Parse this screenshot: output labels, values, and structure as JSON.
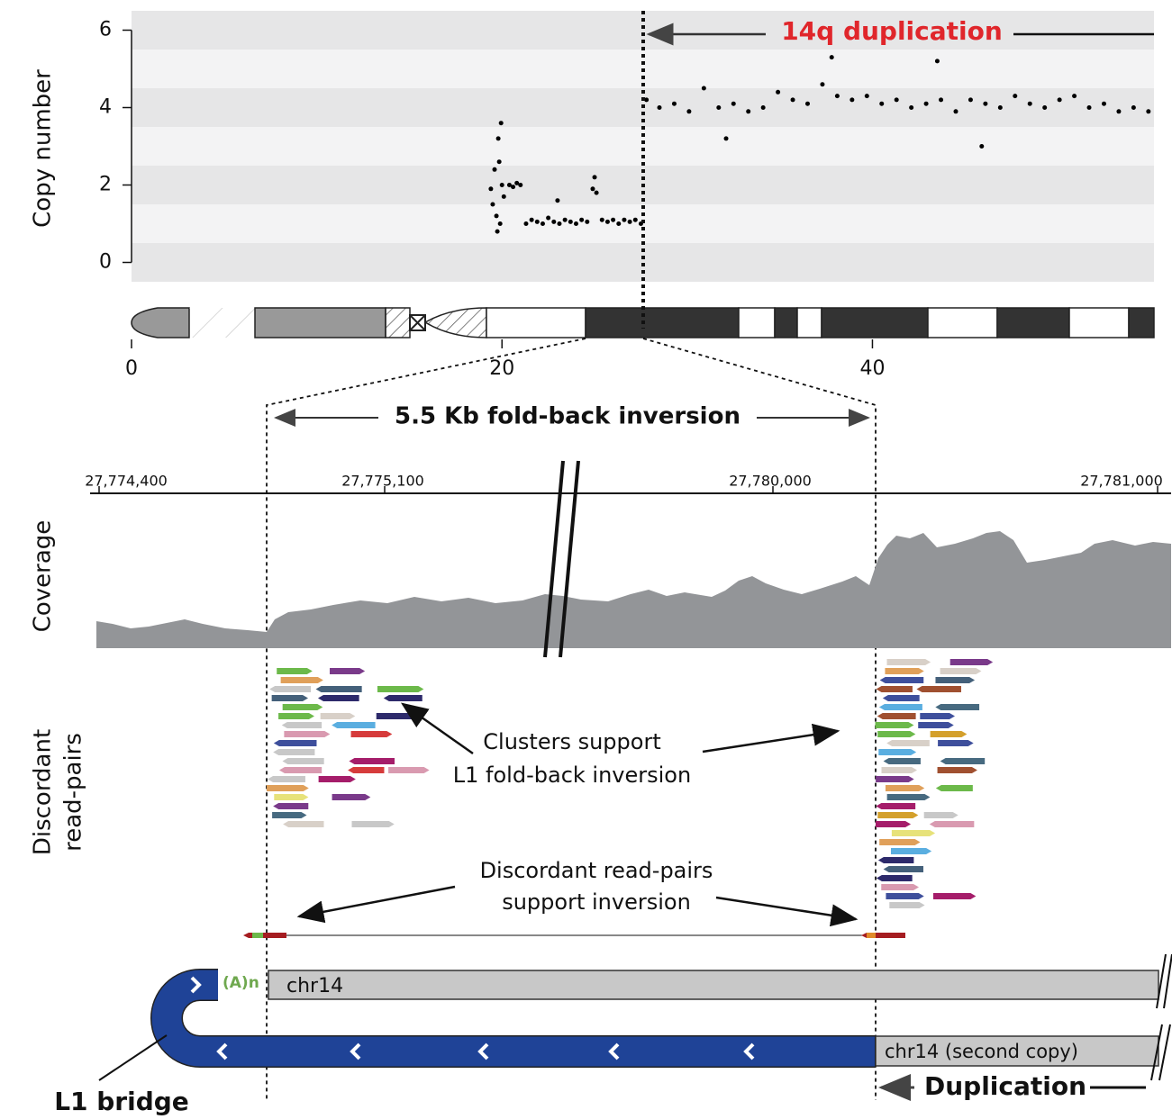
{
  "chart_data": {
    "type": "scatter",
    "ylabel": "Copy number",
    "annotation": "14q duplication",
    "x": [
      19.4,
      19.5,
      19.6,
      19.7,
      19.8,
      19.85,
      19.9,
      20.0,
      19.75,
      20.1,
      19.95,
      20.4,
      20.6,
      20.8,
      21.0,
      21.3,
      21.6,
      21.9,
      22.2,
      22.5,
      22.8,
      23.1,
      23.4,
      23.7,
      24.0,
      24.3,
      24.6,
      23.0,
      24.9,
      25.0,
      25.1,
      25.4,
      25.7,
      26.0,
      26.3,
      26.6,
      26.9,
      27.2,
      27.5,
      27.8,
      28.5,
      29.3,
      30.1,
      30.9,
      31.7,
      32.1,
      32.5,
      33.3,
      34.1,
      34.9,
      35.7,
      36.5,
      37.3,
      37.8,
      38.1,
      38.9,
      39.7,
      40.5,
      41.3,
      42.1,
      42.9,
      43.5,
      43.7,
      44.5,
      45.3,
      45.9,
      46.1,
      46.9,
      47.7,
      48.5,
      49.3,
      50.1,
      50.9,
      51.7,
      52.5,
      53.3,
      54.1,
      54.9
    ],
    "values": [
      1.9,
      1.5,
      2.4,
      1.2,
      3.2,
      2.6,
      1.0,
      2.0,
      0.8,
      1.7,
      3.6,
      2.0,
      1.95,
      2.05,
      2.0,
      1.0,
      1.1,
      1.05,
      1.0,
      1.15,
      1.05,
      1.0,
      1.1,
      1.05,
      1.0,
      1.1,
      1.05,
      1.6,
      1.9,
      2.2,
      1.8,
      1.1,
      1.05,
      1.1,
      1.0,
      1.1,
      1.05,
      1.1,
      1.0,
      4.2,
      4.0,
      4.1,
      3.9,
      4.5,
      4.0,
      3.2,
      4.1,
      3.9,
      4.0,
      4.4,
      4.2,
      4.1,
      4.6,
      5.3,
      4.3,
      4.2,
      4.3,
      4.1,
      4.2,
      4.0,
      4.1,
      5.2,
      4.2,
      3.9,
      4.2,
      3.0,
      4.1,
      4.0,
      4.3,
      4.1,
      4.0,
      4.2,
      4.3,
      4.0,
      4.1,
      3.9,
      4.0,
      3.9
    ],
    "color": "#000000",
    "xlim": [
      0,
      55.2
    ],
    "xticks": [
      0,
      20,
      40
    ],
    "ylim": [
      -0.5,
      6.5
    ],
    "yticks": [
      0,
      2,
      4,
      6
    ],
    "grid": true
  },
  "figure": {
    "inversion_label": "5.5 Kb fold-back inversion",
    "coordinate_labels": [
      "27,774,400",
      "27,775,100",
      "27,780,000",
      "27,781,000"
    ],
    "coverage_label": "Coverage",
    "discordant_label": [
      "Discordant",
      "read-pairs"
    ],
    "clusters_note": [
      "Clusters support",
      "L1 fold-back inversion"
    ],
    "pairs_note": [
      "Discordant read-pairs",
      "support inversion"
    ],
    "polya": "(A)n",
    "chr14": "chr14",
    "chr14_second": "chr14 (second copy)",
    "duplication": "Duplication",
    "l1_bridge": "L1 bridge"
  }
}
